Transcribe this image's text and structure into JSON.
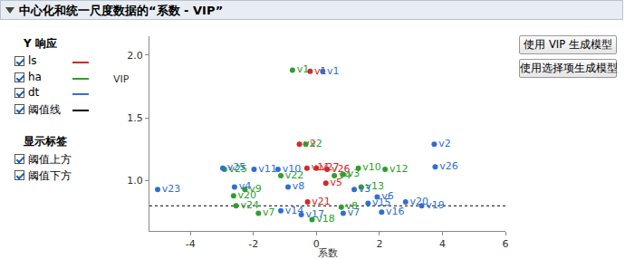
{
  "chart_data": {
    "type": "scatter",
    "title": "中心化和统一尺度数据的“系数 - VIP”",
    "xlabel": "系数",
    "ylabel": "VIP",
    "xlim": [
      -5.3,
      6
    ],
    "ylim": [
      0.6,
      2.15
    ],
    "xticks": [
      -4,
      -2,
      0,
      2,
      4,
      6
    ],
    "yticks": [
      {
        "value": 1,
        "label": "1.0"
      },
      {
        "value": 1.5,
        "label": "1.5"
      },
      {
        "value": 2,
        "label": "2.0"
      }
    ],
    "grid": false,
    "legend_title": "Y 响应",
    "series": [
      {
        "name": "ls",
        "color": "#d62728",
        "marker": "circle",
        "x": [
          -0.2,
          -0.54,
          -0.3,
          0.0,
          0.34,
          0.3,
          -0.28
        ],
        "values": [
          1.87,
          1.29,
          1.1,
          1.1,
          1.09,
          0.98,
          0.83
        ],
        "labels": [
          "v1",
          "v2",
          "v11",
          "v27",
          "v26",
          "v5",
          "v21"
        ]
      },
      {
        "name": "ha",
        "color": "#2ca02c",
        "marker": "circle",
        "x": [
          -0.76,
          -0.34,
          1.33,
          2.18,
          -2.92,
          0.85,
          0.57,
          1.42,
          -2.63,
          -2.27,
          -2.55,
          -1.84,
          -0.14,
          0.79,
          -1.13
        ],
        "values": [
          1.88,
          1.29,
          1.1,
          1.09,
          1.09,
          1.05,
          1.04,
          0.95,
          0.88,
          0.93,
          0.8,
          0.74,
          0.69,
          0.79,
          1.04
        ],
        "labels": [
          "v1",
          "v2",
          "v10",
          "v12",
          "v25",
          "v3",
          "v4",
          "v13",
          "v20",
          "v9",
          "v24",
          "v7",
          "v18",
          "v8",
          "v22"
        ]
      },
      {
        "name": "dt",
        "color": "#2f6fd0",
        "marker": "circle",
        "x": [
          0.2,
          3.74,
          3.77,
          -5.04,
          -2.97,
          -1.98,
          -1.22,
          -2.6,
          -0.9,
          1.93,
          1.2,
          2.83,
          3.34,
          2.07,
          1.64,
          -0.48,
          -1.13,
          0.85
        ],
        "values": [
          1.87,
          1.29,
          1.11,
          0.93,
          1.1,
          1.09,
          1.09,
          0.95,
          0.95,
          0.87,
          0.93,
          0.83,
          0.8,
          0.75,
          0.82,
          0.73,
          0.76,
          0.74
        ],
        "labels": [
          "v1",
          "v2",
          "v26",
          "v23",
          "v25",
          "v11",
          "v10",
          "v4",
          "v8",
          "v6",
          "v3",
          "v20",
          "v19",
          "v16",
          "v15",
          "v17",
          "v14",
          "v7"
        ]
      }
    ],
    "threshold": {
      "name": "阈值线",
      "value": 0.8,
      "color": "#000000",
      "line_style": "dot"
    },
    "label_panel": {
      "title": "显示标签",
      "options": [
        "阈值上方",
        "阈值下方"
      ]
    },
    "buttons": [
      "使用 VIP 生成模型",
      "使用选择项生成模型"
    ]
  }
}
